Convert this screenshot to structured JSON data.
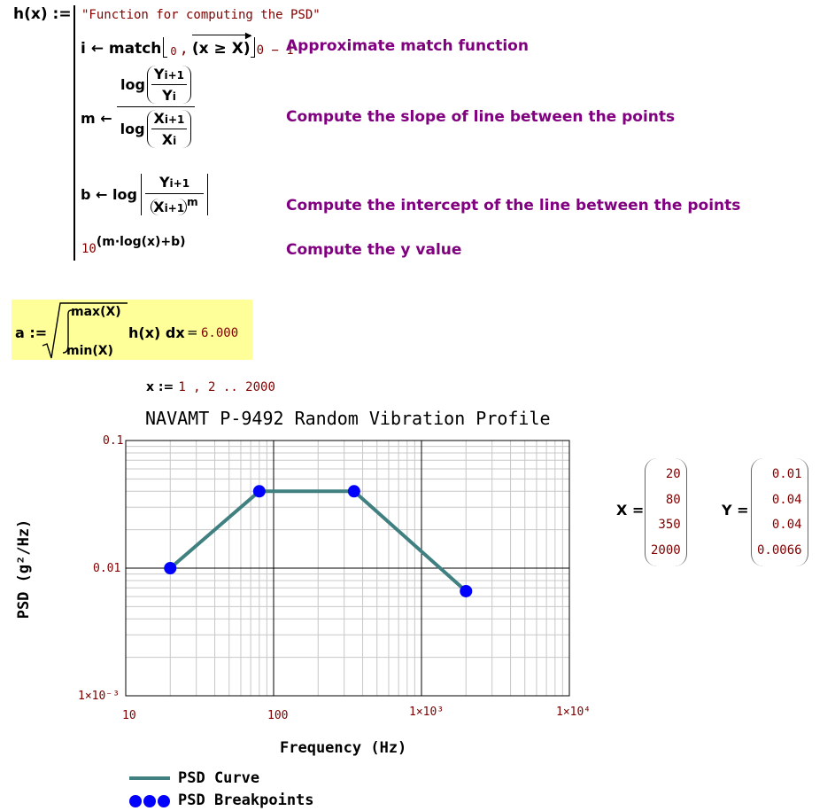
{
  "func": {
    "def": "h(x) :=",
    "string": "\"Function for computing the PSD\"",
    "line_i": {
      "lhs": "i ← match",
      "sub0": "0",
      "arg": "(x ≥ X)",
      "minus": "0 − 1",
      "comment": "Approximate match function"
    },
    "line_m": {
      "lhs": "m ←",
      "log": "log",
      "y_top": "Y",
      "y_top_sub": "i+1",
      "y_bot": "Y",
      "y_bot_sub": "i",
      "x_top": "X",
      "x_top_sub": "i+1",
      "x_bot": "X",
      "x_bot_sub": "i",
      "comment": "Compute the slope of line between the points"
    },
    "line_b": {
      "lhs": "b ← log",
      "y_top": "Y",
      "y_top_sub": "i+1",
      "x_bot": "X",
      "x_bot_sub": "i+1",
      "exp": "m",
      "comment": "Compute the intercept of the line between the points"
    },
    "line_y": {
      "base": "10",
      "exp": "(m·log(x)+b)",
      "comment": "Compute the y value"
    }
  },
  "integral": {
    "lhs": "a :=",
    "upper": "max(X)",
    "lower": "min(X)",
    "body": "h(x) dx",
    "eq": "=",
    "result": "6.000",
    "highlight": "#ffff99"
  },
  "range_def": {
    "lhs": "x :=",
    "value": "1 , 2 .. 2000"
  },
  "chart_data": {
    "type": "line",
    "title": "NAVAMT P-9492 Random Vibration Profile",
    "xlabel": "Frequency (Hz)",
    "ylabel": "PSD (g²/Hz)",
    "x_scale": "log",
    "y_scale": "log",
    "xlim": [
      10,
      10000
    ],
    "ylim": [
      0.001,
      0.1
    ],
    "x_ticks": [
      "10",
      "100",
      "1×10³",
      "1×10⁴"
    ],
    "y_ticks": [
      "0.1",
      "0.01",
      "1×10⁻³"
    ],
    "grid": true,
    "legend_position": "bottom-left",
    "series": [
      {
        "name": "PSD Curve",
        "style": "line",
        "color": "#408080",
        "x": [
          20,
          80,
          350,
          2000
        ],
        "y": [
          0.01,
          0.04,
          0.04,
          0.0066
        ]
      },
      {
        "name": "PSD Breakpoints",
        "style": "points",
        "color": "#0000ff",
        "x": [
          20,
          80,
          350,
          2000
        ],
        "y": [
          0.01,
          0.04,
          0.04,
          0.0066
        ]
      }
    ]
  },
  "matrices": {
    "X_label": "X =",
    "X": [
      "20",
      "80",
      "350",
      "2000"
    ],
    "Y_label": "Y =",
    "Y": [
      "0.01",
      "0.04",
      "0.04",
      "0.0066"
    ]
  }
}
